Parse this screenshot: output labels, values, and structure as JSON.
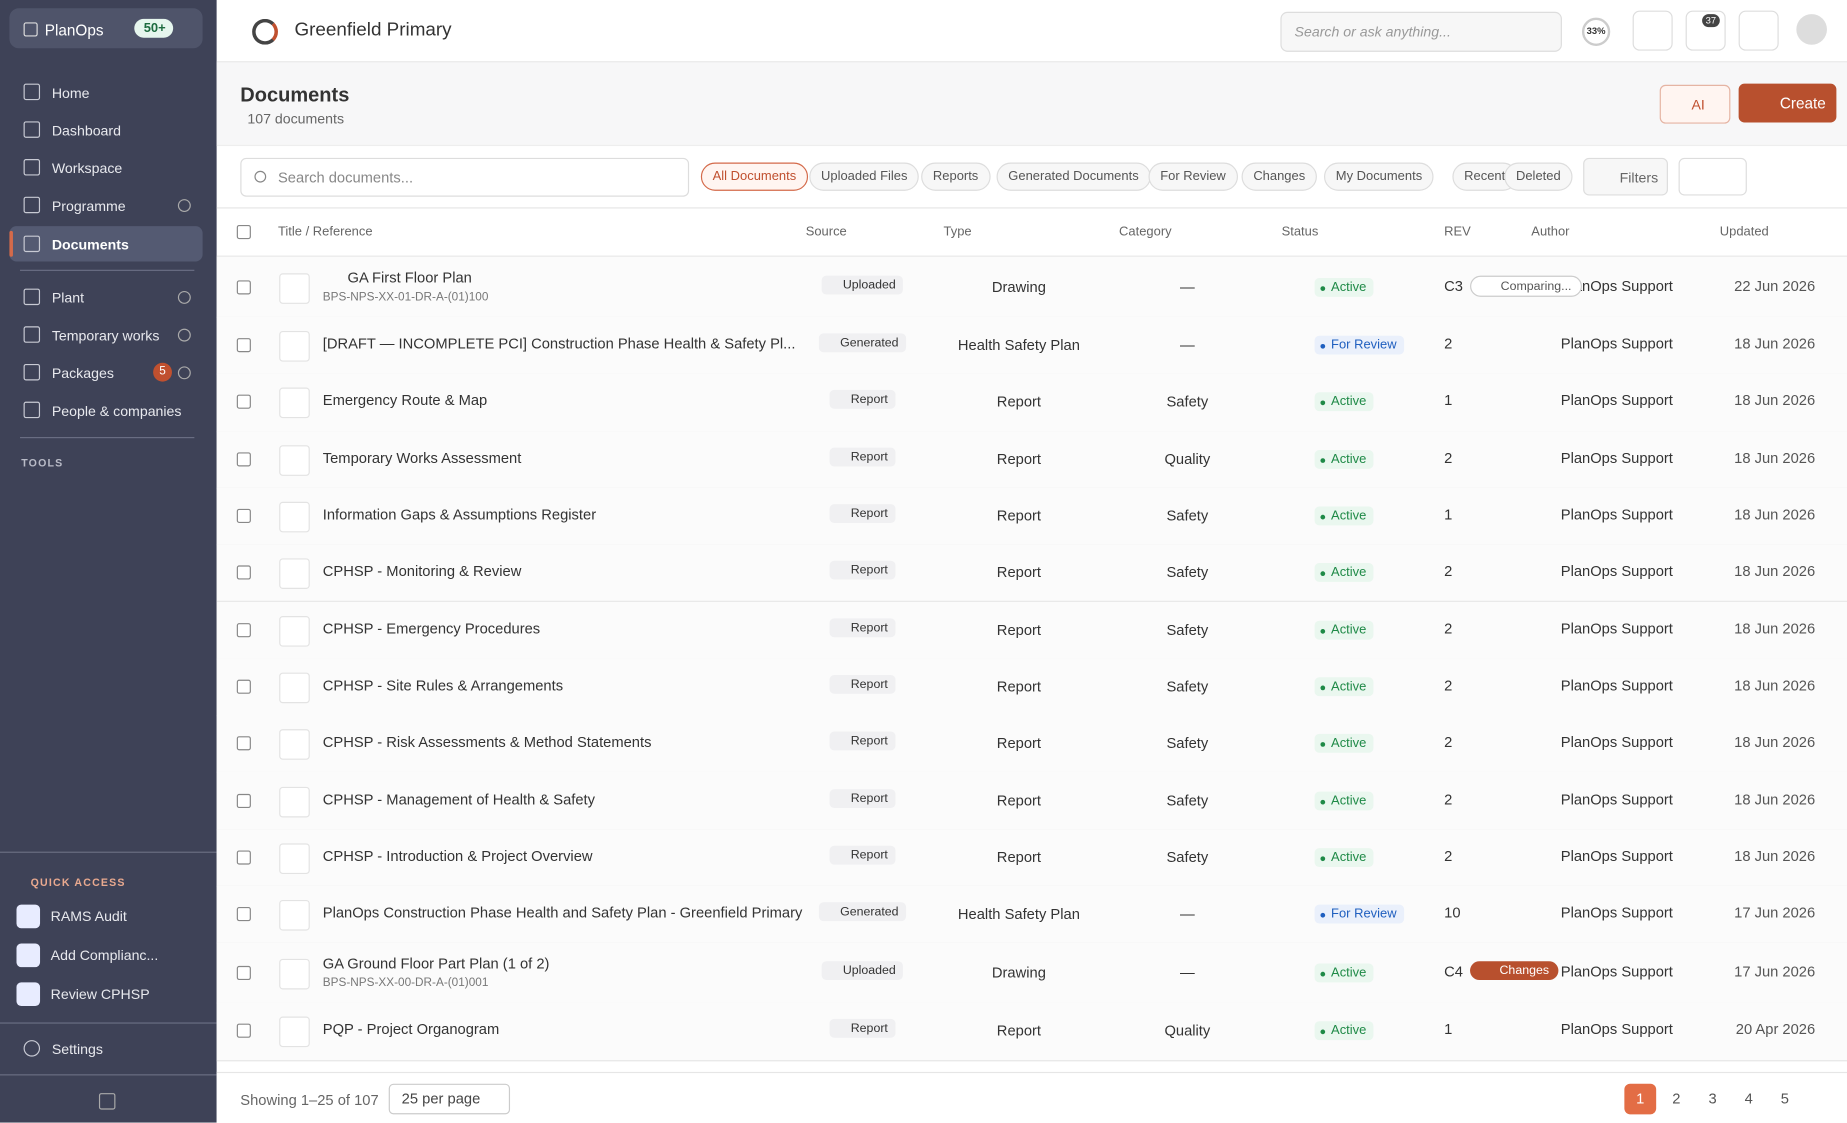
{
  "sidebar": {
    "brand": "PlanOps",
    "badge": "50+",
    "nav": [
      {
        "label": "Home"
      },
      {
        "label": "Dashboard"
      },
      {
        "label": "Workspace"
      },
      {
        "label": "Programme"
      },
      {
        "label": "Documents"
      },
      {
        "label": "Plant"
      },
      {
        "label": "Temporary works"
      },
      {
        "label": "Packages",
        "badge": "5"
      },
      {
        "label": "People & companies"
      }
    ],
    "tools_label": "TOOLS",
    "quick_access_label": "QUICK ACCESS",
    "quick_access": [
      "RAMS Audit",
      "Add Complianc...",
      "Review CPHSP"
    ],
    "settings": "Settings"
  },
  "header": {
    "project": "Greenfield Primary",
    "search_placeholder": "Search or ask anything...",
    "progress": "33%",
    "notifications": "37"
  },
  "page": {
    "title": "Documents",
    "count": "107 documents",
    "ai_button": "AI",
    "create_button": "Create",
    "search_placeholder": "Search documents...",
    "tabs": [
      "All Documents",
      "Uploaded Files",
      "Reports",
      "Generated Documents",
      "For Review",
      "Changes",
      "My Documents",
      "Recent",
      "Deleted"
    ],
    "filters": "Filters"
  },
  "table": {
    "columns": [
      "Title / Reference",
      "Source",
      "Type",
      "Category",
      "Status",
      "REV",
      "Author",
      "Updated"
    ],
    "rows": [
      {
        "title": "GA First Floor Plan",
        "reference": "BPS-NPS-XX-01-DR-A-(01)100",
        "source": "Uploaded",
        "type": "Drawing",
        "category": "—",
        "status": "Active",
        "rev": "C3",
        "rev_tag": "Comparing...",
        "author": "PlanOps Support",
        "updated": "22 Jun 2026"
      },
      {
        "title": "[DRAFT — INCOMPLETE PCI] Construction Phase Health & Safety Pl...",
        "source": "Generated",
        "type": "Health Safety Plan",
        "category": "—",
        "status": "For Review",
        "rev": "2",
        "author": "PlanOps Support",
        "updated": "18 Jun 2026"
      },
      {
        "title": "Emergency Route & Map",
        "source": "Report",
        "type": "Report",
        "category": "Safety",
        "status": "Active",
        "rev": "1",
        "author": "PlanOps Support",
        "updated": "18 Jun 2026"
      },
      {
        "title": "Temporary Works Assessment",
        "source": "Report",
        "type": "Report",
        "category": "Quality",
        "status": "Active",
        "rev": "2",
        "author": "PlanOps Support",
        "updated": "18 Jun 2026"
      },
      {
        "title": "Information Gaps & Assumptions Register",
        "source": "Report",
        "type": "Report",
        "category": "Safety",
        "status": "Active",
        "rev": "1",
        "author": "PlanOps Support",
        "updated": "18 Jun 2026"
      },
      {
        "title": "CPHSP - Monitoring & Review",
        "source": "Report",
        "type": "Report",
        "category": "Safety",
        "status": "Active",
        "rev": "2",
        "author": "PlanOps Support",
        "updated": "18 Jun 2026"
      },
      {
        "title": "CPHSP - Emergency Procedures",
        "source": "Report",
        "type": "Report",
        "category": "Safety",
        "status": "Active",
        "rev": "2",
        "author": "PlanOps Support",
        "updated": "18 Jun 2026"
      },
      {
        "title": "CPHSP - Site Rules & Arrangements",
        "source": "Report",
        "type": "Report",
        "category": "Safety",
        "status": "Active",
        "rev": "2",
        "author": "PlanOps Support",
        "updated": "18 Jun 2026"
      },
      {
        "title": "CPHSP - Risk Assessments & Method Statements",
        "source": "Report",
        "type": "Report",
        "category": "Safety",
        "status": "Active",
        "rev": "2",
        "author": "PlanOps Support",
        "updated": "18 Jun 2026"
      },
      {
        "title": "CPHSP - Management of Health & Safety",
        "source": "Report",
        "type": "Report",
        "category": "Safety",
        "status": "Active",
        "rev": "2",
        "author": "PlanOps Support",
        "updated": "18 Jun 2026"
      },
      {
        "title": "CPHSP - Introduction & Project Overview",
        "source": "Report",
        "type": "Report",
        "category": "Safety",
        "status": "Active",
        "rev": "2",
        "author": "PlanOps Support",
        "updated": "18 Jun 2026"
      },
      {
        "title": "PlanOps Construction Phase Health and Safety Plan - Greenfield Primary",
        "source": "Generated",
        "type": "Health Safety Plan",
        "category": "—",
        "status": "For Review",
        "rev": "10",
        "author": "PlanOps Support",
        "updated": "17 Jun 2026"
      },
      {
        "title": "GA Ground Floor Part Plan (1 of 2)",
        "reference": "BPS-NPS-XX-00-DR-A-(01)001",
        "source": "Uploaded",
        "type": "Drawing",
        "category": "—",
        "status": "Active",
        "rev": "C4",
        "rev_tag": "Changes",
        "author": "PlanOps Support",
        "updated": "17 Jun 2026"
      },
      {
        "title": "PQP - Project Organogram",
        "source": "Report",
        "type": "Report",
        "category": "Quality",
        "status": "Active",
        "rev": "1",
        "author": "PlanOps Support",
        "updated": "20 Apr 2026"
      }
    ]
  },
  "footer": {
    "showing": "Showing 1–25 of 107",
    "per_page": "25 per page",
    "pages": [
      "1",
      "2",
      "3",
      "4",
      "5"
    ]
  }
}
